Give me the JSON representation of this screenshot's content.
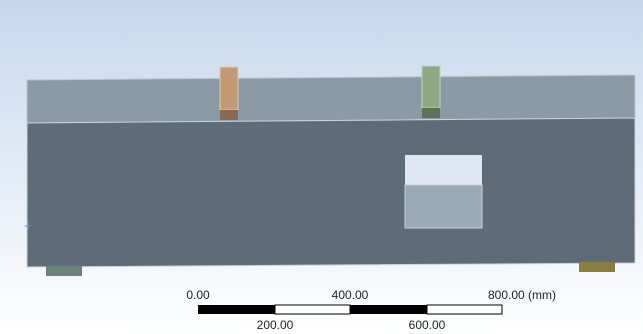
{
  "scale_bar": {
    "top_labels": [
      "0.00",
      "400.00",
      "800.00 (mm)"
    ],
    "bottom_labels": [
      "200.00",
      "600.00"
    ]
  }
}
